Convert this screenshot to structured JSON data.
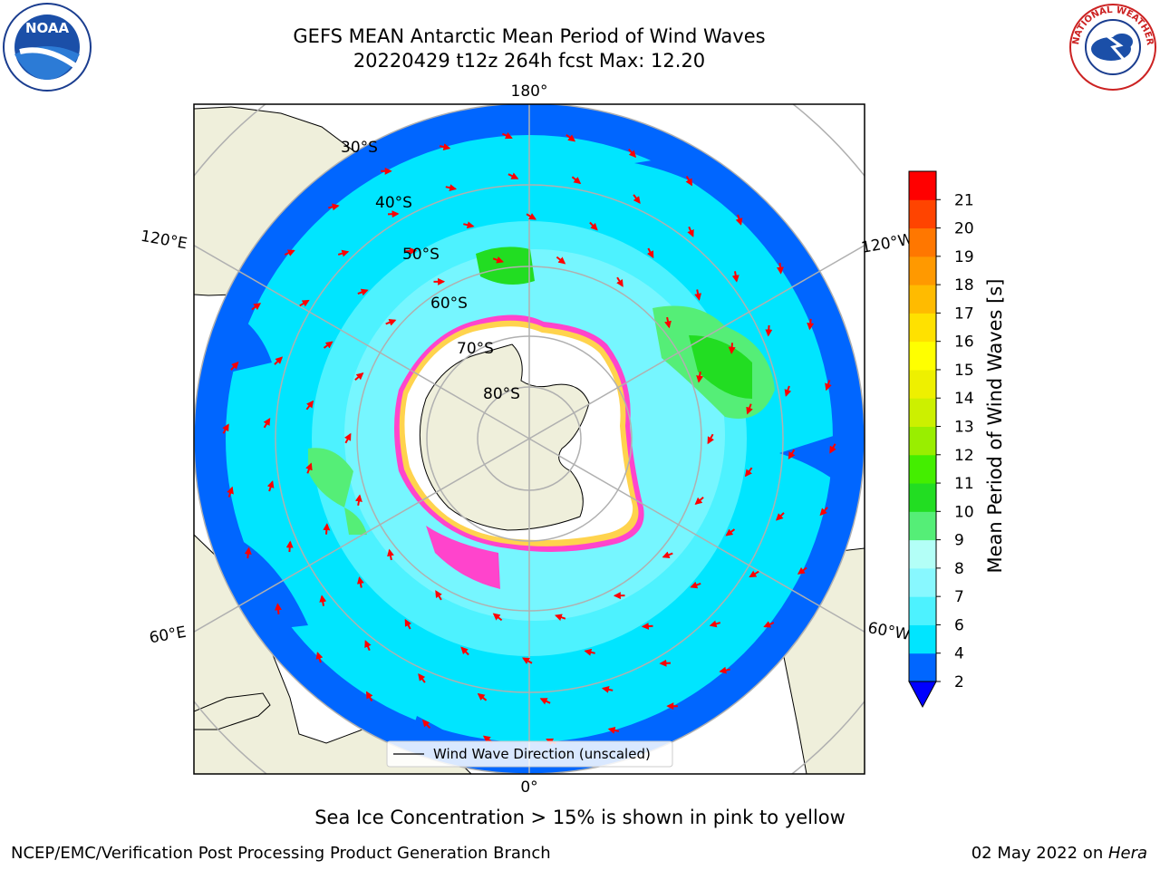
{
  "title": {
    "line1": "GEFS MEAN Antarctic Mean Period of Wind Waves",
    "line2": "20220429 t12z 264h fcst   Max: 12.20"
  },
  "logos": {
    "left": {
      "name": "noaa-logo",
      "text": "NOAA"
    },
    "right": {
      "name": "nws-logo",
      "text": "NATIONAL WEATHER SERVICE"
    }
  },
  "map": {
    "projection": "south-polar-stereographic",
    "longitude_labels": {
      "top": "180°",
      "bottom": "0°",
      "left_upper": "120°E",
      "left_lower": "60°E",
      "right_upper": "120°W",
      "right_lower": "60°W"
    },
    "latitude_labels": [
      "30°S",
      "40°S",
      "50°S",
      "60°S",
      "70°S",
      "80°S"
    ],
    "legend": "Wind Wave Direction (unscaled)"
  },
  "colorbar": {
    "label": "Mean Period of Wind Waves [s]",
    "ticks": [
      "2",
      "4",
      "6",
      "7",
      "8",
      "9",
      "10",
      "11",
      "12",
      "13",
      "14",
      "15",
      "16",
      "17",
      "18",
      "19",
      "20",
      "21"
    ],
    "colors": [
      "#0066ff",
      "#00e5ff",
      "#4df2ff",
      "#88f8ff",
      "#b3fff7",
      "#55ee77",
      "#22dd22",
      "#44ee00",
      "#99ee00",
      "#ccf000",
      "#eef000",
      "#ffff00",
      "#ffe100",
      "#ffbb00",
      "#ff9900",
      "#ff7700",
      "#ff4400",
      "#ff0000"
    ],
    "under_color": "#0000ff"
  },
  "colors": {
    "land": "#efefdb",
    "ice": "#ff44cc",
    "arrow": "#ff0000",
    "grid": "#b0b0b0"
  },
  "caption": "Sea Ice Concentration > 15% is shown in pink to yellow",
  "footer": {
    "left": "NCEP/EMC/Verification Post Processing Product Generation Branch",
    "right_prefix": "02 May 2022 on ",
    "right_host": "Hera"
  }
}
